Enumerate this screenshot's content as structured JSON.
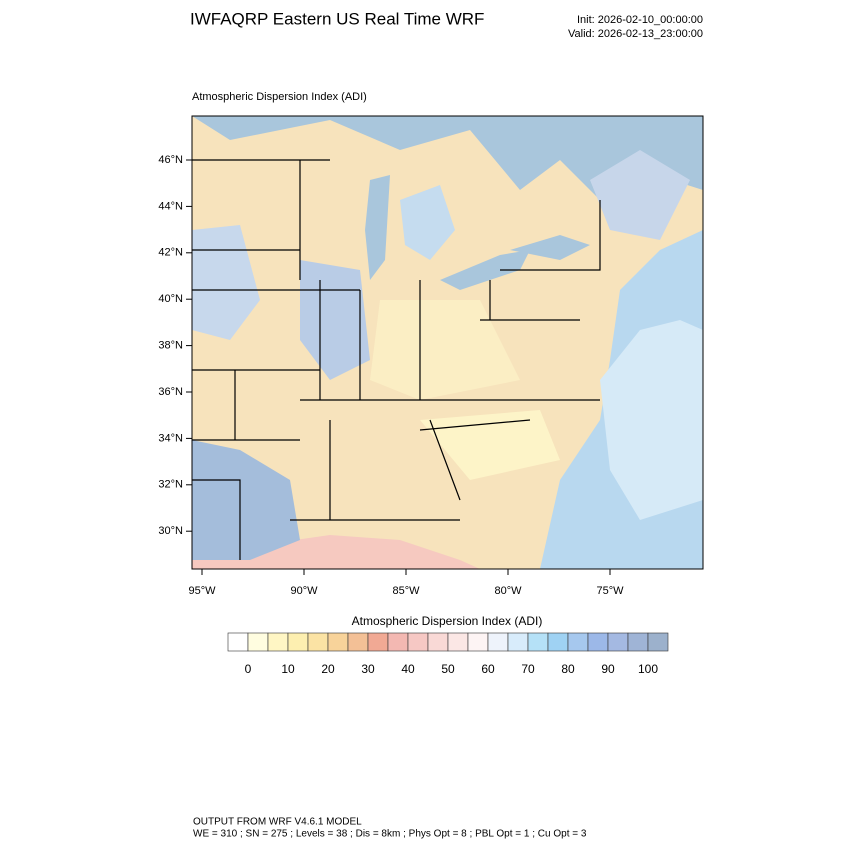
{
  "header": {
    "title": "IWFAQRP Eastern US Real Time WRF",
    "init": "Init: 2026-02-10_00:00:00",
    "valid": "Valid: 2026-02-13_23:00:00"
  },
  "map": {
    "label": "Atmospheric Dispersion Index   (ADI)",
    "lat_ticks": [
      {
        "value": 46,
        "label": "46°N"
      },
      {
        "value": 44,
        "label": "44°N"
      },
      {
        "value": 42,
        "label": "42°N"
      },
      {
        "value": 40,
        "label": "40°N"
      },
      {
        "value": 38,
        "label": "38°N"
      },
      {
        "value": 36,
        "label": "36°N"
      },
      {
        "value": 34,
        "label": "34°N"
      },
      {
        "value": 32,
        "label": "32°N"
      },
      {
        "value": 30,
        "label": "30°N"
      }
    ],
    "lon_ticks": [
      {
        "value": -95,
        "label": "95°W"
      },
      {
        "value": -90,
        "label": "90°W"
      },
      {
        "value": -85,
        "label": "85°W"
      },
      {
        "value": -80,
        "label": "80°W"
      },
      {
        "value": -75,
        "label": "75°W"
      }
    ]
  },
  "colorbar": {
    "title": "Atmospheric Dispersion Index  (ADI)",
    "ticks": [
      0,
      10,
      20,
      30,
      40,
      50,
      60,
      70,
      80,
      90,
      100
    ],
    "colors": [
      "#ffffff",
      "#fffde0",
      "#fff6c4",
      "#fdefb0",
      "#fbe3a4",
      "#f8d39a",
      "#f3c096",
      "#f1a994",
      "#f3b8b2",
      "#f6c8c4",
      "#f9d9d6",
      "#fbe7e5",
      "#fdf4f4",
      "#eef3fb",
      "#d8ecfb",
      "#b5e1f7",
      "#9fd2f3",
      "#a6c8ee",
      "#9cb8e8",
      "#a4b9e2",
      "#9fb4d6",
      "#9cb1cc"
    ]
  },
  "footer": {
    "line1": "OUTPUT FROM WRF V4.6.1 MODEL",
    "line2": "WE = 310 ; SN = 275 ; Levels = 38 ; Dis = 8km ; Phys Opt = 8 ; PBL Opt = 1 ; Cu Opt = 3"
  }
}
